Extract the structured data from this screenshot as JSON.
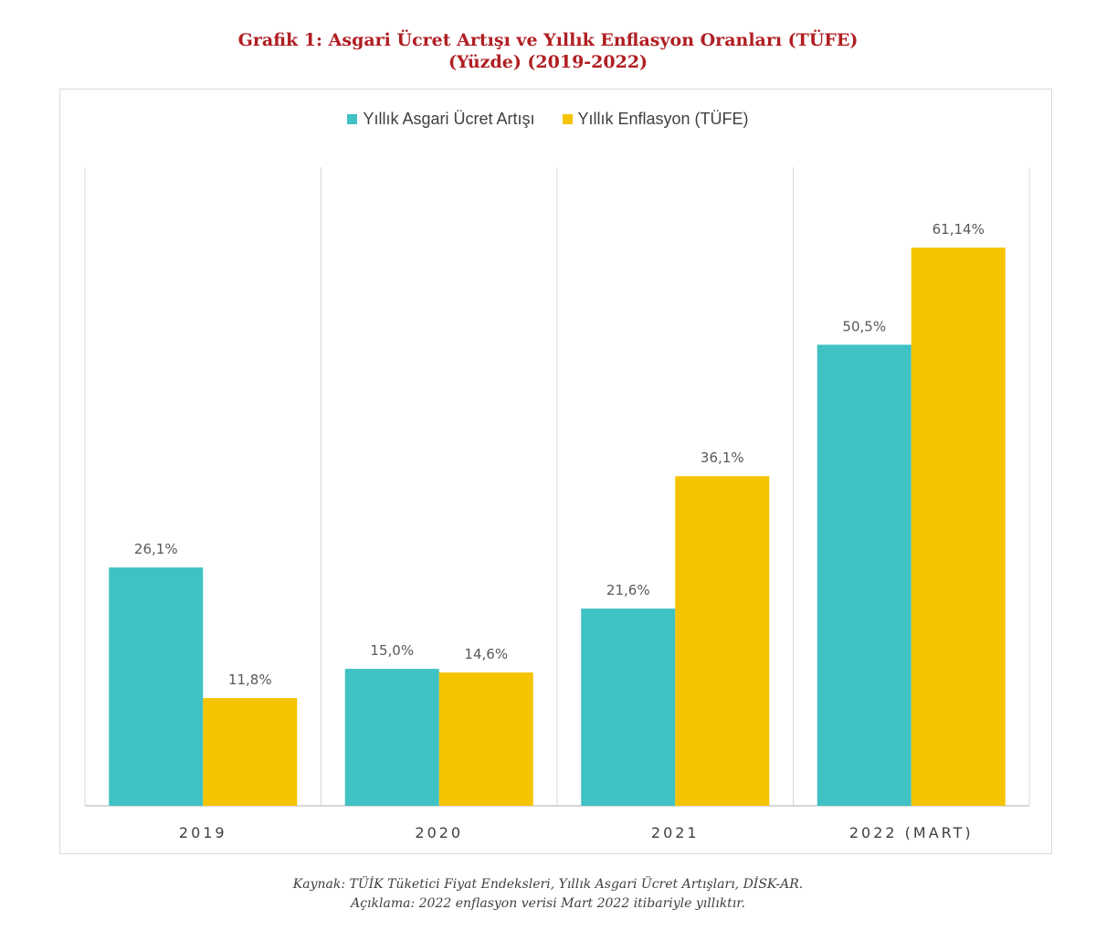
{
  "title": {
    "line1": "Grafik 1: Asgari Ücret Artışı ve Yıllık Enflasyon Oranları (TÜFE)",
    "line2": "(Yüzde) (2019-2022)"
  },
  "colors": {
    "series1": "#40c1c3",
    "series2": "#f5c400",
    "title": "#b01e23"
  },
  "chart_data": {
    "type": "bar",
    "title": "Grafik 1: Asgari Ücret Artışı ve Yıllık Enflasyon Oranları (TÜFE) (Yüzde) (2019-2022)",
    "categories": [
      "2019",
      "2020",
      "2021",
      "2022 (MART)"
    ],
    "series": [
      {
        "name": "Yıllık Asgari Ücret Artışı",
        "values": [
          26.1,
          15.0,
          21.6,
          50.5
        ],
        "labels": [
          "26,1%",
          "15,0%",
          "21,6%",
          "50,5%"
        ]
      },
      {
        "name": "Yıllık Enflasyon (TÜFE)",
        "values": [
          11.8,
          14.6,
          36.1,
          61.14
        ],
        "labels": [
          "11,8%",
          "14,6%",
          "36,1%",
          "61,14%"
        ]
      }
    ],
    "ylim": [
      0,
      70
    ],
    "grid": false,
    "legend": "top-center"
  },
  "footnote": {
    "source": "Kaynak: TÜİK Tüketici Fiyat Endeksleri, Yıllık Asgari Ücret Artışları, DİSK-AR.",
    "note": "Açıklama: 2022 enflasyon verisi Mart 2022 itibariyle yıllıktır."
  }
}
